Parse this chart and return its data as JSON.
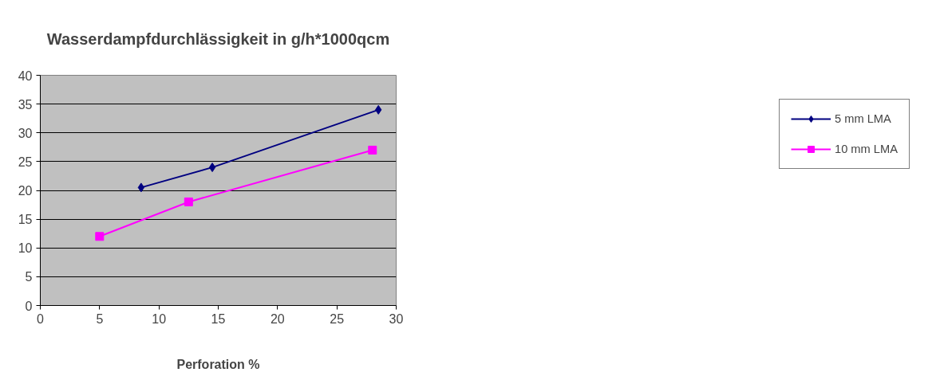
{
  "chart_data": {
    "type": "line",
    "title": "Wasserdampfdurchlässigkeit in g/h*1000qcm",
    "xlabel": "Perforation %",
    "xlim": [
      0,
      30
    ],
    "xticks": [
      0,
      5,
      10,
      15,
      20,
      25,
      30
    ],
    "ylim": [
      0,
      40
    ],
    "yticks": [
      0,
      5,
      10,
      15,
      20,
      25,
      30,
      35,
      40
    ],
    "grid": "y",
    "legend": "right",
    "line_style": "solid",
    "series": [
      {
        "name": "5 mm LMA",
        "color": "#000080",
        "marker": "diamond",
        "x": [
          8.5,
          14.5,
          28.5
        ],
        "values": [
          20.5,
          24,
          34
        ]
      },
      {
        "name": "10 mm LMA",
        "color": "#ff00ff",
        "marker": "square",
        "x": [
          5,
          12.5,
          28
        ],
        "values": [
          12,
          18,
          27
        ]
      }
    ]
  }
}
